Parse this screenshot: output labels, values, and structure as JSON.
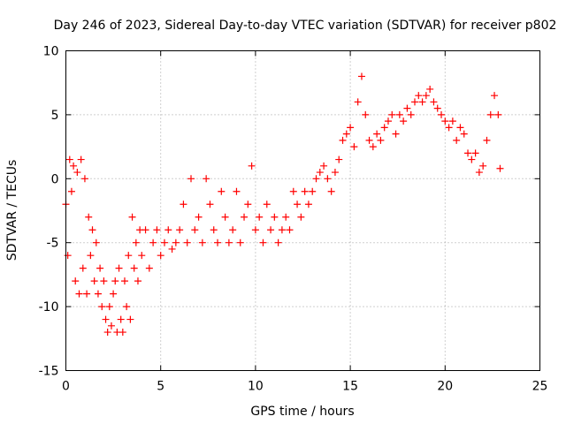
{
  "chart_data": {
    "type": "scatter",
    "title": "Day 246 of 2023, Sidereal Day-to-day VTEC variation (SDTVAR) for receiver p802",
    "xlabel": "GPS time / hours",
    "ylabel": "SDTVAR / TECUs",
    "xlim": [
      0,
      25
    ],
    "ylim": [
      -15,
      10
    ],
    "xticks": [
      "0",
      "5",
      "10",
      "15",
      "20",
      "25"
    ],
    "yticks": [
      "-15",
      "-10",
      "-5",
      "0",
      "5",
      "10"
    ],
    "grid": true,
    "marker": "+",
    "series": [
      {
        "name": "SDTVAR",
        "color": "#ff0000",
        "x": [
          0.0,
          0.1,
          0.2,
          0.3,
          0.4,
          0.5,
          0.6,
          0.7,
          0.8,
          0.9,
          1.0,
          1.1,
          1.2,
          1.3,
          1.4,
          1.5,
          1.6,
          1.7,
          1.8,
          1.9,
          2.0,
          2.1,
          2.2,
          2.3,
          2.4,
          2.5,
          2.6,
          2.7,
          2.8,
          2.9,
          3.0,
          3.1,
          3.2,
          3.3,
          3.4,
          3.5,
          3.6,
          3.7,
          3.8,
          3.9,
          4.0,
          4.2,
          4.4,
          4.6,
          4.8,
          5.0,
          5.2,
          5.4,
          5.6,
          5.8,
          6.0,
          6.2,
          6.4,
          6.6,
          6.8,
          7.0,
          7.2,
          7.4,
          7.6,
          7.8,
          8.0,
          8.2,
          8.4,
          8.6,
          8.8,
          9.0,
          9.2,
          9.4,
          9.6,
          9.8,
          10.0,
          10.2,
          10.4,
          10.6,
          10.8,
          11.0,
          11.2,
          11.4,
          11.6,
          11.8,
          12.0,
          12.2,
          12.4,
          12.6,
          12.8,
          13.0,
          13.2,
          13.4,
          13.6,
          13.8,
          14.0,
          14.2,
          14.4,
          14.6,
          14.8,
          15.0,
          15.2,
          15.4,
          15.6,
          15.8,
          16.0,
          16.2,
          16.4,
          16.6,
          16.8,
          17.0,
          17.2,
          17.4,
          17.6,
          17.8,
          18.0,
          18.2,
          18.4,
          18.6,
          18.8,
          19.0,
          19.2,
          19.4,
          19.6,
          19.8,
          20.0,
          20.2,
          20.4,
          20.6,
          20.8,
          21.0,
          21.2,
          21.4,
          21.6,
          21.8,
          22.0,
          22.2,
          22.4,
          22.6,
          22.8,
          22.9
        ],
        "y": [
          -2,
          -6,
          1.5,
          -1,
          1,
          -8,
          0.5,
          -9,
          1.5,
          -7,
          0,
          -9,
          -3,
          -6,
          -4,
          -8,
          -5,
          -9,
          -7,
          -10,
          -8,
          -11,
          -12,
          -10,
          -11.5,
          -9,
          -8,
          -12,
          -7,
          -11,
          -12,
          -8,
          -10,
          -6,
          -11,
          -3,
          -7,
          -5,
          -8,
          -4,
          -6,
          -4,
          -7,
          -5,
          -4,
          -6,
          -5,
          -4,
          -5.5,
          -5,
          -4,
          -2,
          -5,
          0,
          -4,
          -3,
          -5,
          0,
          -2,
          -4,
          -5,
          -1,
          -3,
          -5,
          -4,
          -1,
          -5,
          -3,
          -2,
          1,
          -4,
          -3,
          -5,
          -2,
          -4,
          -3,
          -5,
          -4,
          -3,
          -4,
          -1,
          -2,
          -3,
          -1,
          -2,
          -1,
          0,
          0.5,
          1,
          0,
          -1,
          0.5,
          1.5,
          3,
          3.5,
          4,
          2.5,
          6,
          8,
          5,
          3,
          2.5,
          3.5,
          3,
          4,
          4.5,
          5,
          3.5,
          5,
          4.5,
          5.5,
          5,
          6,
          6.5,
          6,
          6.5,
          7,
          6,
          5.5,
          5,
          4.5,
          4,
          4.5,
          3,
          4,
          3.5,
          2,
          1.5,
          2,
          0.5,
          1,
          3,
          5,
          6.5,
          5,
          0.8
        ]
      }
    ]
  }
}
